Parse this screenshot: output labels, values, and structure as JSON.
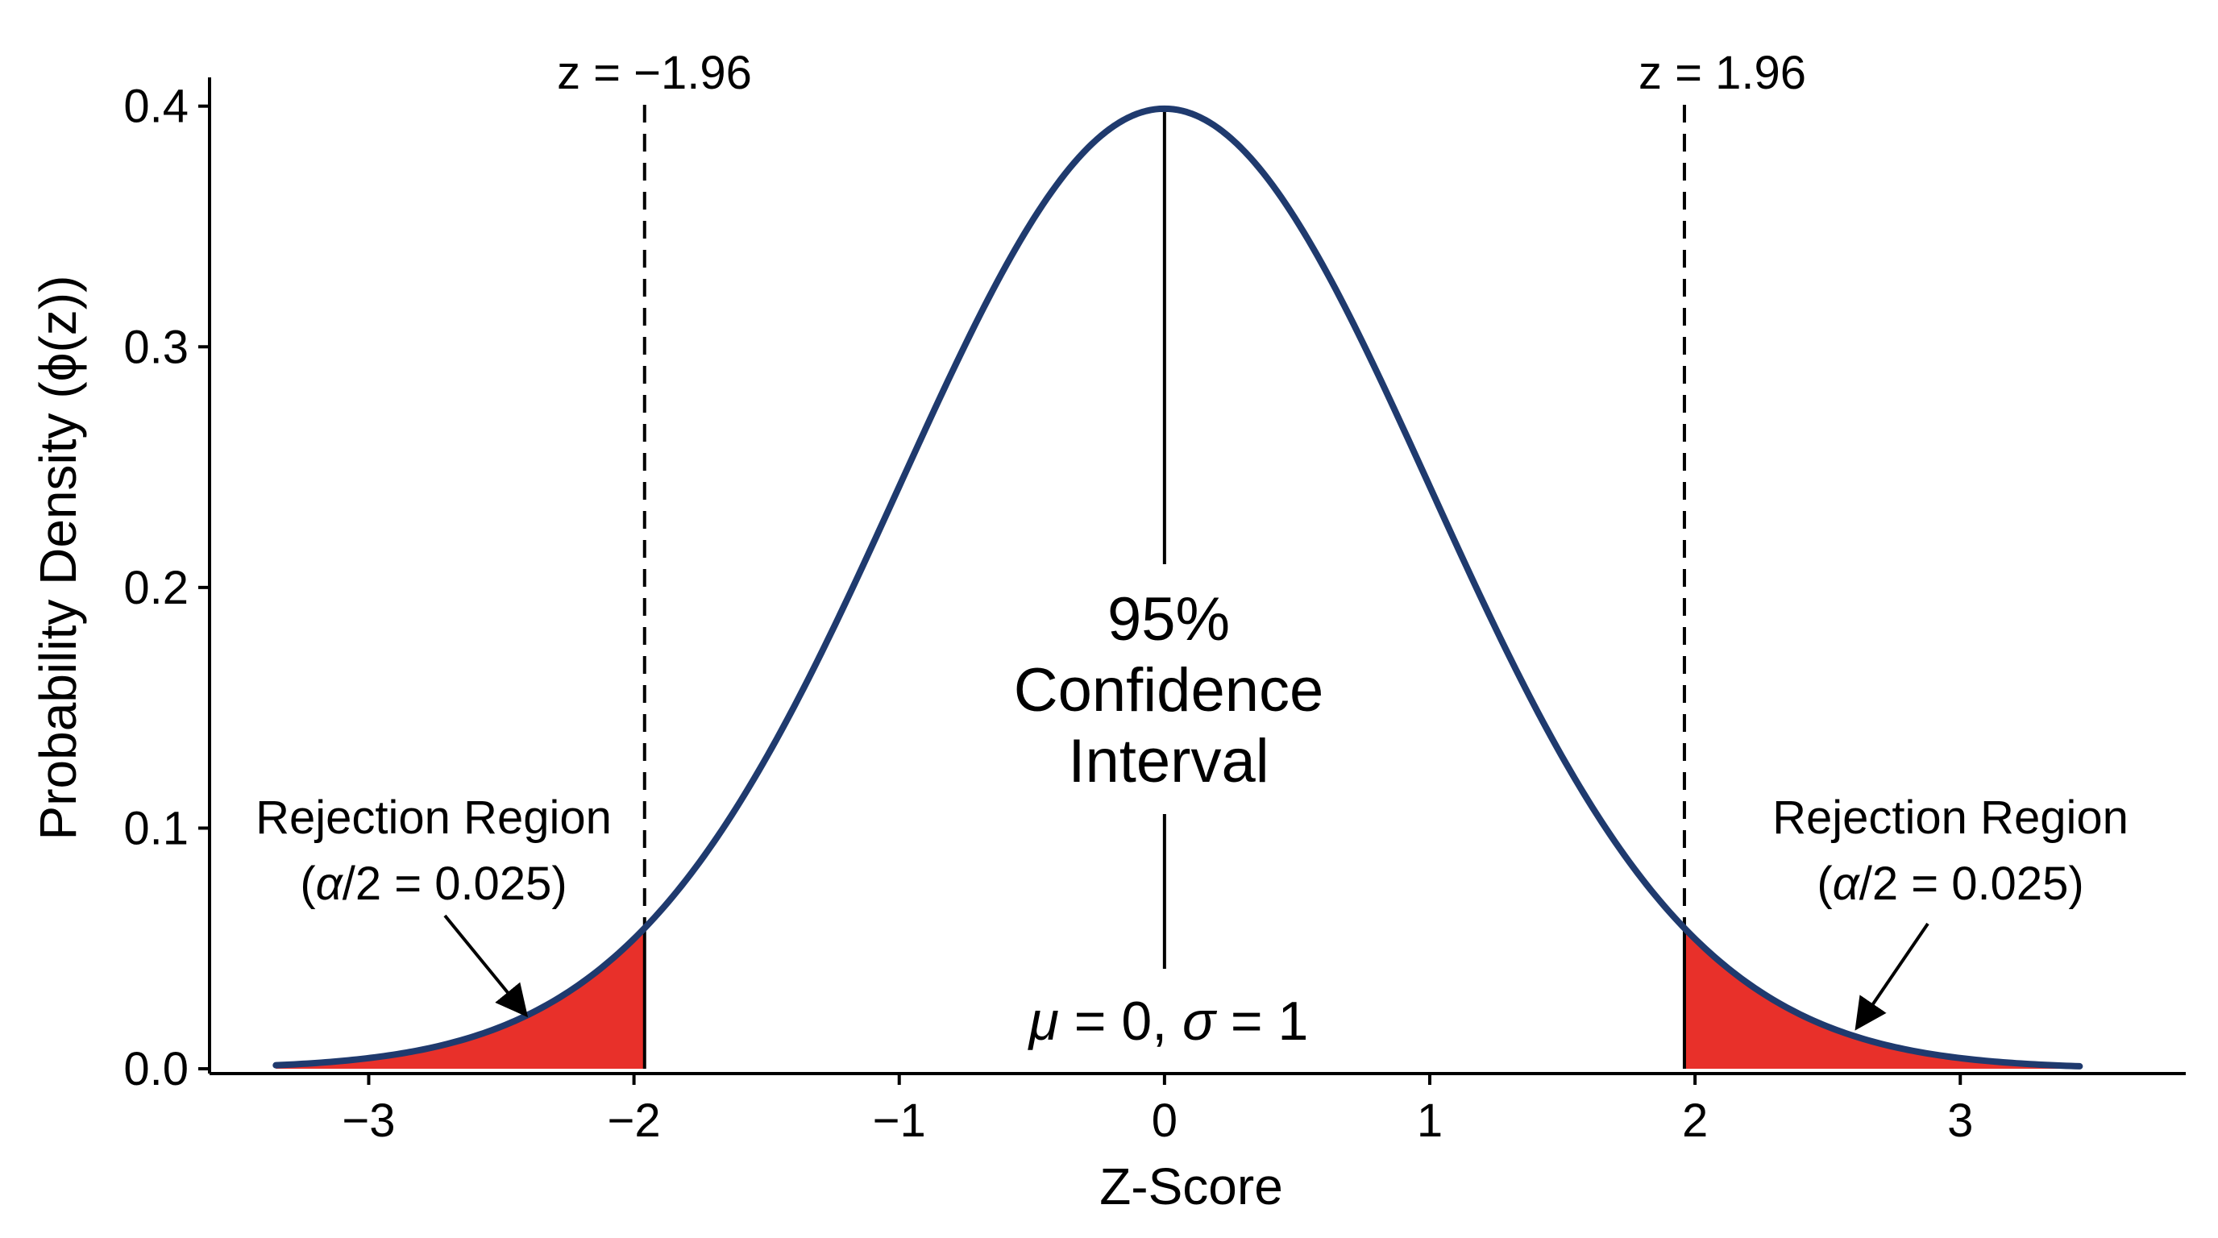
{
  "chart_data": {
    "type": "area",
    "title": "",
    "xlabel": "Z-Score",
    "ylabel": "Probability Density (ϕ(z))",
    "xlim": [
      -3.35,
      3.45
    ],
    "ylim": [
      0,
      0.4
    ],
    "x_domain_plot": [
      -3.6,
      3.85
    ],
    "y_domain_plot": [
      -0.002,
      0.422
    ],
    "x_ticks": [
      -3,
      -2,
      -1,
      0,
      1,
      2,
      3
    ],
    "x_tick_labels": [
      "−3",
      "−2",
      "−1",
      "0",
      "1",
      "2",
      "3"
    ],
    "y_ticks": [
      0.0,
      0.1,
      0.2,
      0.3,
      0.4
    ],
    "y_tick_labels": [
      "0.0",
      "0.1",
      "0.2",
      "0.3",
      "0.4"
    ],
    "grid": false,
    "legend": "none",
    "series": [
      {
        "distribution": "normal",
        "mean": 0,
        "sd": 1,
        "color": "#1f3a6e"
      }
    ],
    "critical_values": [
      -1.96,
      1.96
    ],
    "tail_fill_color": "#e8302a",
    "annotations": {
      "crit_left": "z = −1.96",
      "crit_right": "z = 1.96",
      "center_line1": "95%",
      "center_line2": "Confidence",
      "center_line3": "Interval",
      "params_mu": "μ",
      "params_eq_zero": " = 0, ",
      "params_sigma": "σ",
      "params_eq_one": " = 1",
      "reject_left_line1": "Rejection Region",
      "reject_left_alpha": "α",
      "reject_left_rest": "/2 = 0.025",
      "reject_right_line1": "Rejection Region",
      "reject_right_alpha": "α",
      "reject_right_rest": "/2 = 0.025",
      "open_paren": "(",
      "close_paren": ")"
    }
  }
}
